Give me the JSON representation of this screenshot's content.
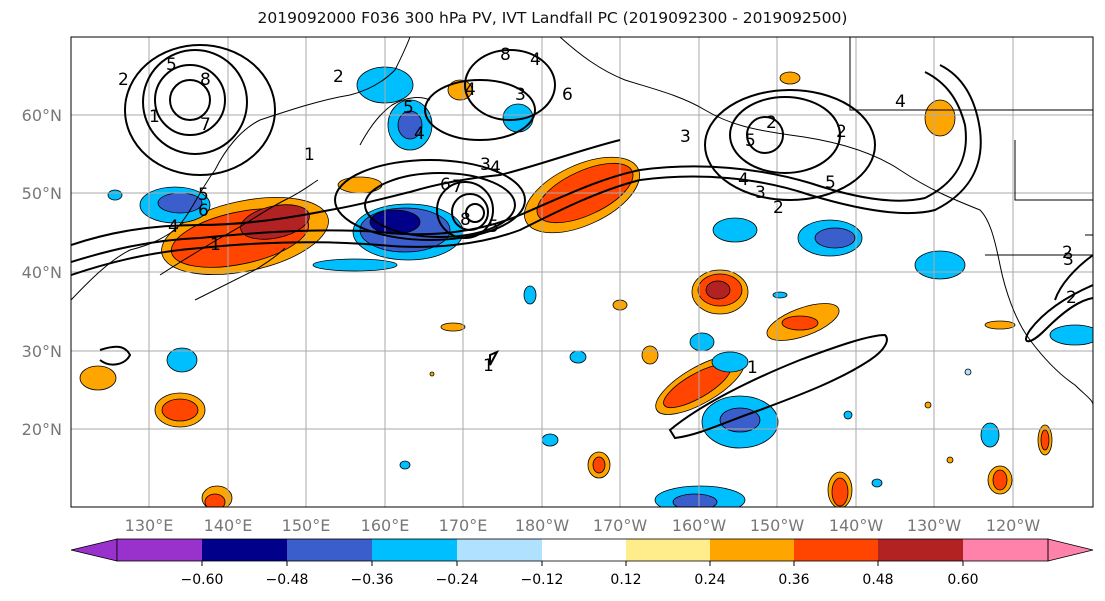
{
  "title": "2019092000 F036 300 hPa PV, IVT Landfall PC (2019092300 - 2019092500)",
  "map": {
    "lat_labels": [
      "60°N",
      "50°N",
      "40°N",
      "30°N",
      "20°N"
    ],
    "lon_labels": [
      "130°E",
      "140°E",
      "150°E",
      "160°E",
      "170°E",
      "180°W",
      "170°W",
      "160°W",
      "150°W",
      "140°W",
      "130°W",
      "120°W"
    ],
    "contour_labels": [
      "2",
      "5",
      "8",
      "7",
      "4",
      "1",
      "1",
      "6",
      "5",
      "4",
      "8",
      "2",
      "6",
      "5",
      "4",
      "3",
      "8",
      "7",
      "6",
      "5",
      "4",
      "1",
      "1",
      "2",
      "4",
      "3",
      "5",
      "2",
      "3",
      "4",
      "5",
      "2",
      "4",
      "3",
      "2",
      "1",
      "3",
      "2"
    ]
  },
  "colorbar": {
    "colors": [
      "#9932cc",
      "#00008b",
      "#3a5fcd",
      "#00bfff",
      "#b0e2ff",
      "#ffffff",
      "#ffec8b",
      "#ffa500",
      "#ff4500",
      "#b22222",
      "#ff82ab"
    ],
    "tick_labels": [
      "−0.60",
      "−0.48",
      "−0.36",
      "−0.24",
      "−0.12",
      "0.12",
      "0.24",
      "0.36",
      "0.48",
      "0.60"
    ]
  }
}
